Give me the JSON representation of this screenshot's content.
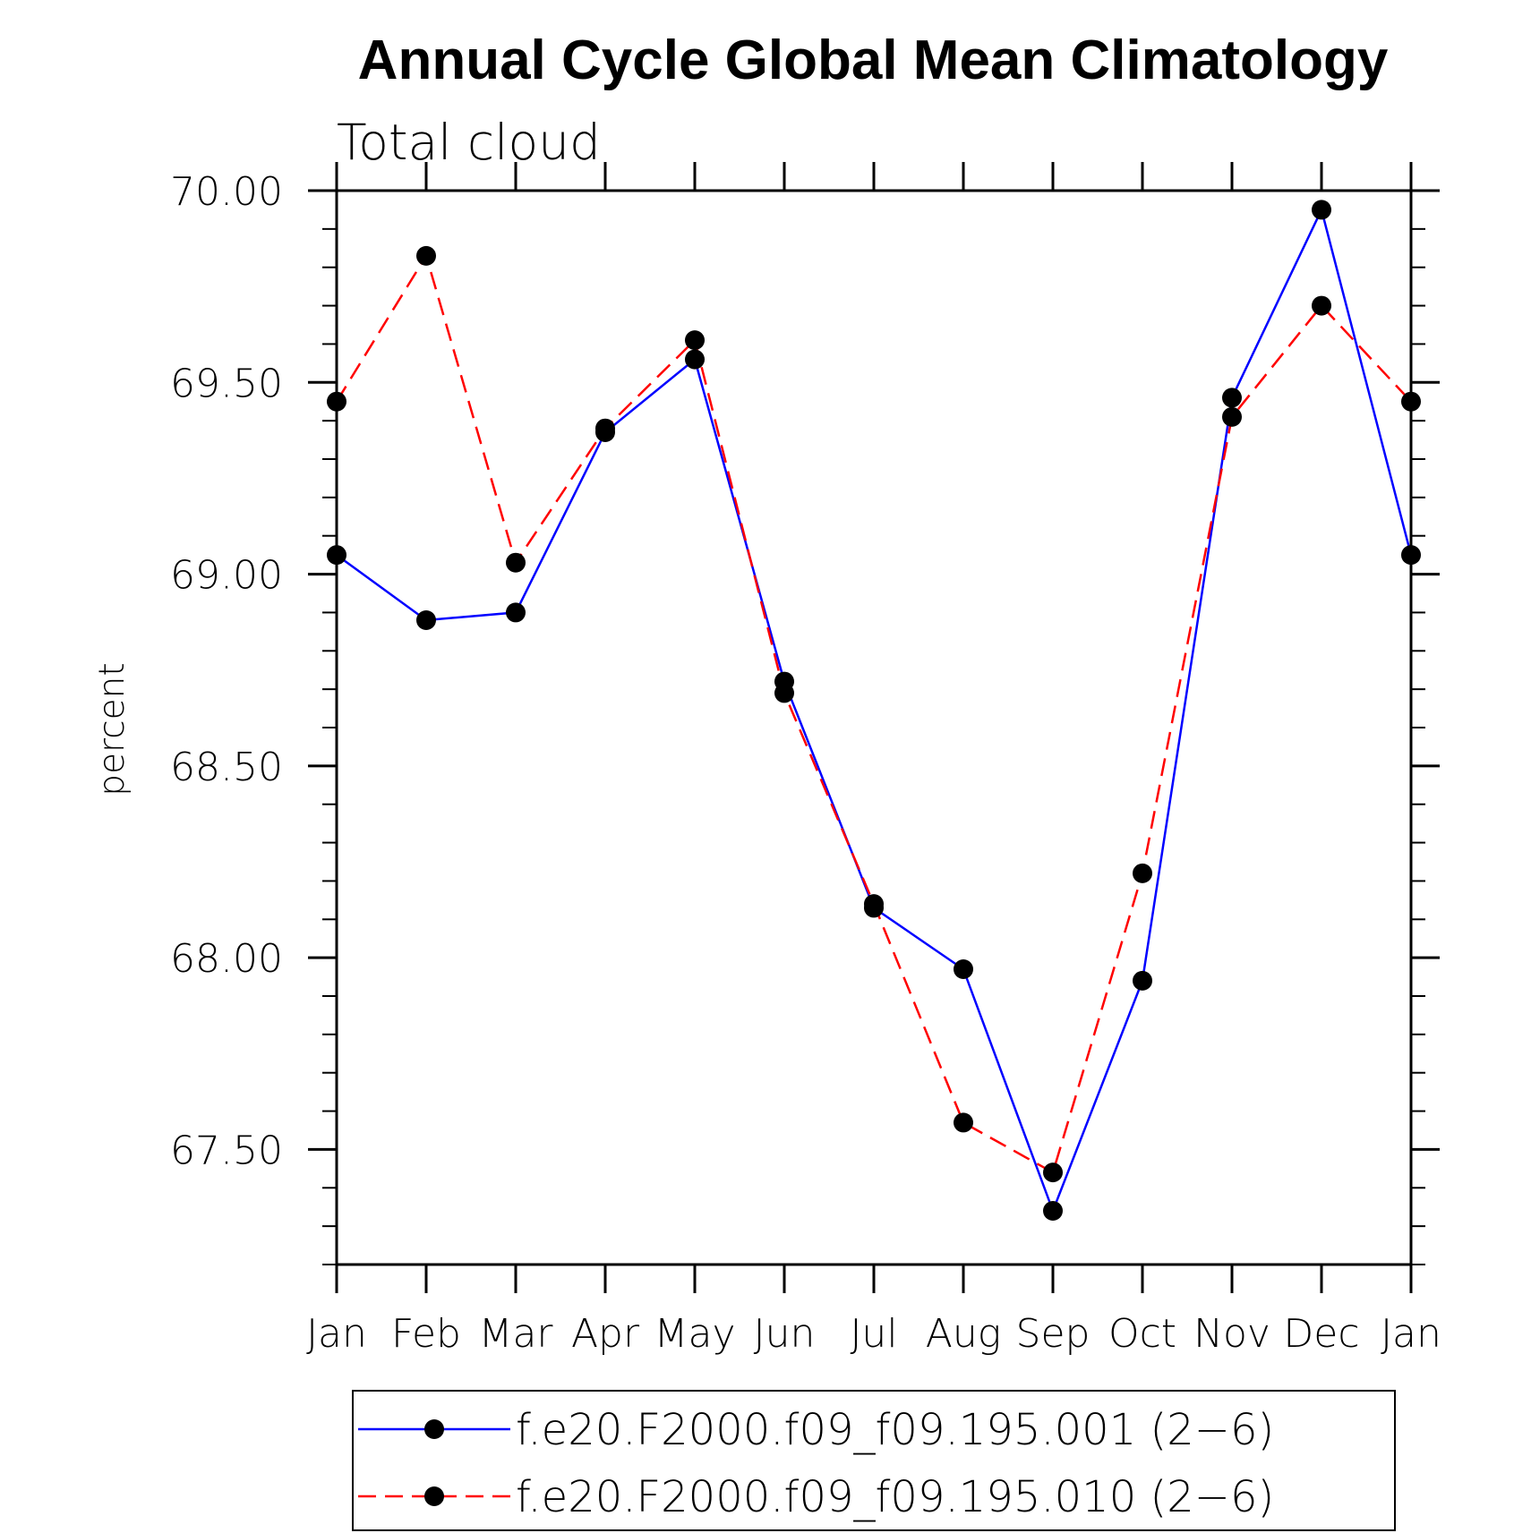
{
  "chart_data": {
    "type": "line",
    "title": "Annual Cycle Global Mean Climatology",
    "subtitle": "Total cloud",
    "xlabel": "",
    "ylabel": "percent",
    "categories": [
      "Jan",
      "Feb",
      "Mar",
      "Apr",
      "May",
      "Jun",
      "Jul",
      "Aug",
      "Sep",
      "Oct",
      "Nov",
      "Dec",
      "Jan"
    ],
    "yticks": [
      "67.50",
      "68.00",
      "68.50",
      "69.00",
      "69.50",
      "70.00"
    ],
    "ylim": [
      67.2,
      70.0
    ],
    "series": [
      {
        "name": "f.e20.F2000.f09_f09.195.001 (2−6)",
        "color": "#0000ff",
        "line_style": "solid",
        "marker": "filled-circle",
        "values": [
          69.05,
          68.88,
          68.9,
          69.37,
          69.56,
          68.72,
          68.13,
          67.97,
          67.34,
          67.94,
          69.46,
          69.95,
          69.05
        ]
      },
      {
        "name": "f.e20.F2000.f09_f09.195.010 (2−6)",
        "color": "#ff0000",
        "line_style": "dashed",
        "marker": "filled-circle",
        "values": [
          69.45,
          69.83,
          69.03,
          69.38,
          69.61,
          68.69,
          68.14,
          67.57,
          67.44,
          68.22,
          69.41,
          69.7,
          69.45
        ]
      }
    ],
    "grid": false,
    "legend_position": "bottom-center"
  }
}
